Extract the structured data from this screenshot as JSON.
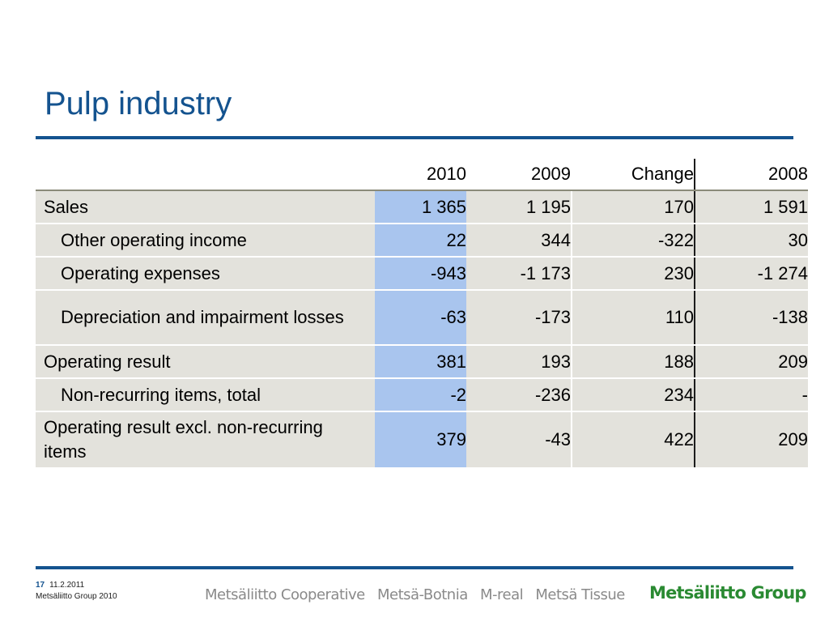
{
  "title": "Pulp industry",
  "table": {
    "headers": [
      "",
      "2010",
      "2009",
      "Change",
      "2008"
    ],
    "rows": [
      {
        "label": "Sales",
        "indent": false,
        "values": [
          "1 365",
          "1 195",
          "170",
          "1 591"
        ]
      },
      {
        "label": "Other operating income",
        "indent": true,
        "values": [
          "22",
          "344",
          "-322",
          "30"
        ]
      },
      {
        "label": "Operating expenses",
        "indent": true,
        "values": [
          "-943",
          "-1 173",
          "230",
          "-1 274"
        ]
      },
      {
        "label": "Depreciation and impairment losses",
        "indent": true,
        "values": [
          "-63",
          "-173",
          "110",
          "-138"
        ]
      },
      {
        "label": "Operating result",
        "indent": false,
        "values": [
          "381",
          "193",
          "188",
          "209"
        ]
      },
      {
        "label": "Non-recurring items, total",
        "indent": true,
        "values": [
          "-2",
          "-236",
          "234",
          "-"
        ]
      },
      {
        "label": "Operating result excl. non-recurring items",
        "indent": false,
        "values": [
          "379",
          "-43",
          "422",
          "209"
        ]
      }
    ]
  },
  "footer": {
    "page": "17",
    "date": "11.2.2011",
    "org": "Metsäliitto Group 2010",
    "divisions": [
      "Metsäliitto Cooperative",
      "Metsä-Botnia",
      "M-real",
      "Metsä Tissue"
    ],
    "brand": "Metsäliitto Group"
  },
  "colors": {
    "title": "#14538f",
    "rule": "#14538f",
    "row_bg": "#e3e2dc",
    "highlight_2010": "#a9c5ee",
    "brand": "#2a8a32"
  }
}
